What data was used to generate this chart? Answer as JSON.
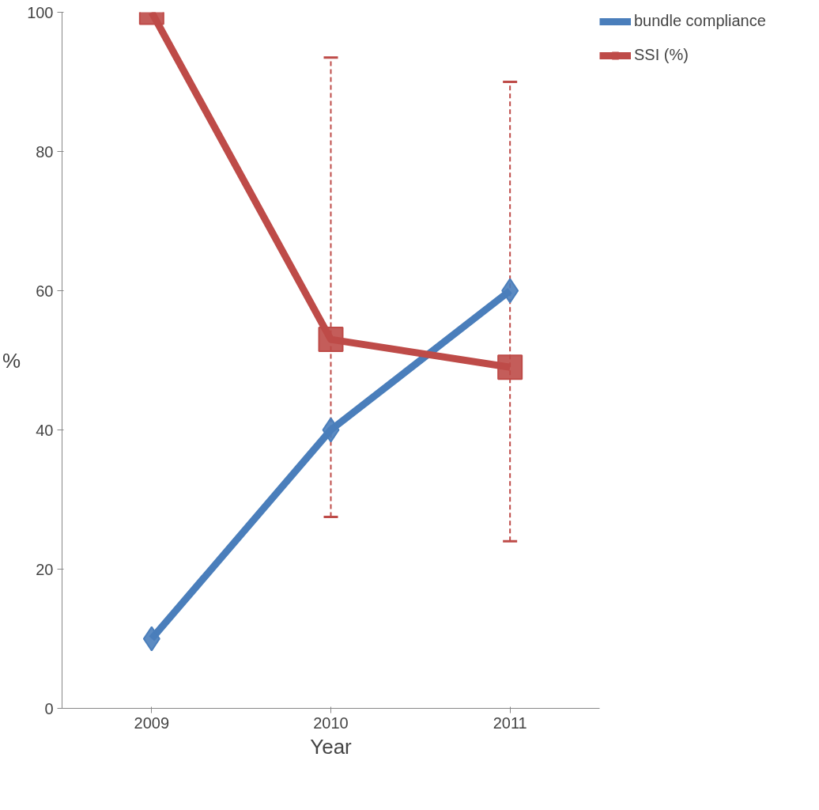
{
  "chart_data": {
    "type": "line",
    "xlabel": "Year",
    "ylabel": "%",
    "categories": [
      "2009",
      "2010",
      "2011"
    ],
    "series": [
      {
        "name": "bundle compliance",
        "color": "#4a7ebb",
        "marker": "diamond",
        "values": [
          10,
          40,
          60
        ]
      },
      {
        "name": "SSI (%)",
        "color": "#be4b48",
        "marker": "square",
        "values": [
          100,
          53,
          49
        ],
        "errors": [
          null,
          [
            27.5,
            93.5
          ],
          [
            24,
            90
          ]
        ]
      }
    ],
    "ylim": [
      0,
      100
    ],
    "yticks": [
      0,
      20,
      40,
      60,
      80,
      100
    ],
    "grid": false,
    "legend": "right",
    "line_style": "solid"
  }
}
